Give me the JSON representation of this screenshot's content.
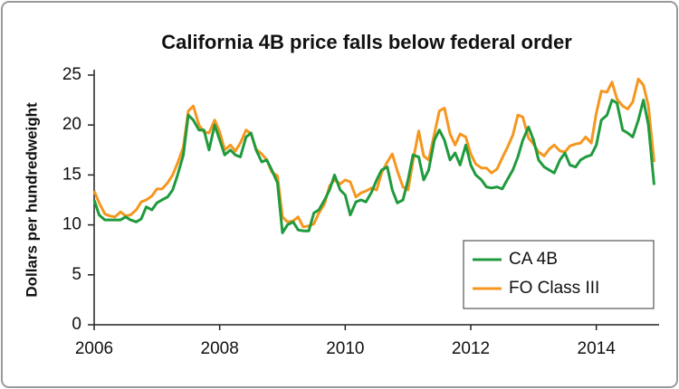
{
  "chart_data": {
    "type": "line",
    "title": "California 4B price falls below federal order",
    "y_label": "Dollars per hundredweight",
    "xlim": [
      2006,
      2015
    ],
    "xticks": [
      2006,
      2008,
      2010,
      2012,
      2014
    ],
    "ylim": [
      0,
      25
    ],
    "yticks": [
      0,
      5,
      10,
      15,
      20,
      25
    ],
    "legend": "lower right",
    "grid": false,
    "x": [
      2006,
      2006.08,
      2006.17,
      2006.25,
      2006.33,
      2006.42,
      2006.5,
      2006.58,
      2006.67,
      2006.75,
      2006.83,
      2006.92,
      2007,
      2007.08,
      2007.17,
      2007.25,
      2007.33,
      2007.42,
      2007.5,
      2007.58,
      2007.67,
      2007.75,
      2007.83,
      2007.92,
      2008,
      2008.08,
      2008.17,
      2008.25,
      2008.33,
      2008.42,
      2008.5,
      2008.58,
      2008.67,
      2008.75,
      2008.83,
      2008.92,
      2009,
      2009.08,
      2009.17,
      2009.25,
      2009.33,
      2009.42,
      2009.5,
      2009.58,
      2009.67,
      2009.75,
      2009.83,
      2009.92,
      2010,
      2010.08,
      2010.17,
      2010.25,
      2010.33,
      2010.42,
      2010.5,
      2010.58,
      2010.67,
      2010.75,
      2010.83,
      2010.92,
      2011,
      2011.08,
      2011.17,
      2011.25,
      2011.33,
      2011.42,
      2011.5,
      2011.58,
      2011.67,
      2011.75,
      2011.83,
      2011.92,
      2012,
      2012.08,
      2012.17,
      2012.25,
      2012.33,
      2012.42,
      2012.5,
      2012.58,
      2012.67,
      2012.75,
      2012.83,
      2012.92,
      2013,
      2013.08,
      2013.17,
      2013.25,
      2013.33,
      2013.42,
      2013.5,
      2013.58,
      2013.67,
      2013.75,
      2013.83,
      2013.92,
      2014,
      2014.08,
      2014.17,
      2014.25,
      2014.33,
      2014.42,
      2014.5,
      2014.58,
      2014.67,
      2014.75,
      2014.83,
      2014.92
    ],
    "series": [
      {
        "name": "CA 4B",
        "color": "#1f9a3c",
        "values": [
          12.5,
          11.0,
          10.5,
          10.5,
          10.5,
          10.5,
          10.8,
          10.5,
          10.3,
          10.6,
          11.8,
          11.5,
          12.2,
          12.5,
          12.8,
          13.5,
          15,
          17,
          21,
          20.5,
          19.5,
          19.5,
          17.5,
          20,
          18.5,
          17,
          17.5,
          17,
          16.8,
          18.8,
          19.2,
          17.5,
          16.3,
          16.5,
          15.5,
          14.2,
          9.2,
          10,
          10.3,
          9.5,
          9.4,
          9.4,
          11.2,
          11.5,
          12.5,
          13.5,
          15,
          13.5,
          13,
          11,
          12.3,
          12.5,
          12.3,
          13.3,
          14.5,
          15.5,
          15.8,
          13.5,
          12.2,
          12.5,
          14.5,
          17,
          16.8,
          14.5,
          15.5,
          18.5,
          19.5,
          18.5,
          16.5,
          17.2,
          16,
          18,
          16,
          15,
          14.5,
          13.8,
          13.7,
          13.8,
          13.6,
          14.5,
          15.5,
          16.8,
          18.5,
          19.8,
          18.5,
          16.5,
          15.8,
          15.5,
          15.2,
          16.5,
          17.2,
          16,
          15.8,
          16.5,
          16.8,
          17,
          18,
          20.5,
          21,
          22.5,
          22.2,
          19.5,
          19.2,
          18.8,
          20.5,
          22.5,
          20,
          14
        ]
      },
      {
        "name": "FO Class III",
        "color": "#f5971f",
        "values": [
          13.4,
          12.2,
          11.1,
          10.9,
          10.8,
          11.3,
          10.9,
          11.0,
          11.5,
          12.3,
          12.5,
          12.9,
          13.6,
          13.6,
          14.2,
          15,
          16.2,
          17.8,
          21.4,
          21.9,
          20,
          19.3,
          19.2,
          20.5,
          19.3,
          17.5,
          18,
          17.4,
          18.2,
          19.5,
          19.1,
          17.6,
          17.1,
          16.5,
          15.3,
          14.9,
          10.8,
          10.3,
          10.4,
          10.8,
          9.8,
          9.9,
          10.1,
          11.2,
          12.1,
          13.9,
          14.5,
          14.1,
          14.5,
          14.3,
          12.8,
          13.2,
          13.4,
          13.7,
          13.5,
          15.2,
          16.3,
          17.1,
          15.4,
          13.8,
          13.5,
          16.4,
          19.4,
          16.9,
          16.5,
          19.1,
          21.4,
          21.7,
          19.1,
          18,
          19.1,
          18.8,
          17.1,
          16.1,
          15.7,
          15.7,
          15.2,
          15.6,
          16.7,
          17.7,
          19,
          21,
          20.8,
          18.7,
          18.1,
          17.3,
          16.9,
          17.6,
          18,
          17.4,
          17.3,
          17.9,
          18.1,
          18.2,
          18.8,
          18.2,
          21.2,
          23.4,
          23.3,
          24.3,
          22.6,
          21.9,
          21.6,
          22.3,
          24.6,
          24,
          21.9,
          16.3
        ]
      }
    ]
  }
}
